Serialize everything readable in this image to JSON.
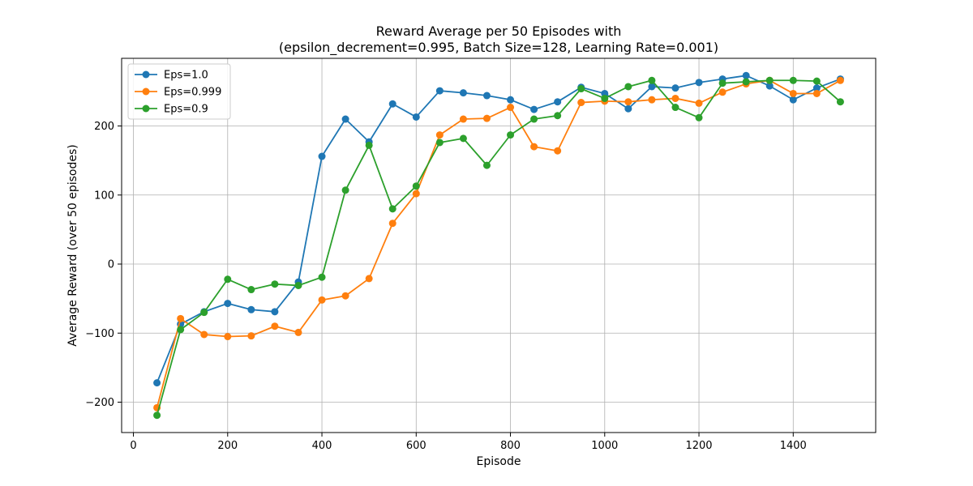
{
  "chart_data": {
    "type": "line",
    "title": [
      "Reward Average per 50 Episodes with",
      "(epsilon_decrement=0.995, Batch Size=128, Learning Rate=0.001)"
    ],
    "xlabel": "Episode",
    "ylabel": "Average Reward (over 50 episodes)",
    "xlim": [
      -25,
      1575
    ],
    "ylim": [
      -244,
      298
    ],
    "xticks": [
      0,
      200,
      400,
      600,
      800,
      1000,
      1200,
      1400
    ],
    "yticks": [
      -200,
      -100,
      0,
      100,
      200
    ],
    "xtick_labels": [
      "0",
      "200",
      "400",
      "600",
      "800",
      "1000",
      "1200",
      "1400"
    ],
    "ytick_labels": [
      "−200",
      "−100",
      "0",
      "100",
      "200"
    ],
    "grid": true,
    "legend_position": "top-left",
    "x": [
      50,
      100,
      150,
      200,
      250,
      300,
      350,
      400,
      450,
      500,
      550,
      600,
      650,
      700,
      750,
      800,
      850,
      900,
      950,
      1000,
      1050,
      1100,
      1150,
      1200,
      1250,
      1300,
      1350,
      1400,
      1450,
      1500
    ],
    "series": [
      {
        "name": "Eps=1.0",
        "color": "#1f77b4",
        "values": [
          -172,
          -87,
          -69,
          -57,
          -66,
          -69,
          -26,
          156,
          210,
          177,
          232,
          213,
          251,
          248,
          244,
          238,
          224,
          235,
          256,
          247,
          225,
          257,
          255,
          263,
          268,
          273,
          258,
          238,
          255,
          268
        ]
      },
      {
        "name": "Eps=0.999",
        "color": "#ff7f0e",
        "values": [
          -208,
          -79,
          -102,
          -105,
          -104,
          -90,
          -99,
          -52,
          -46,
          -21,
          59,
          102,
          187,
          210,
          211,
          227,
          170,
          164,
          234,
          236,
          235,
          238,
          240,
          233,
          249,
          261,
          266,
          247,
          247,
          266
        ]
      },
      {
        "name": "Eps=0.9",
        "color": "#2ca02c",
        "values": [
          -219,
          -95,
          -70,
          -22,
          -37,
          -29,
          -31,
          -19,
          107,
          172,
          80,
          113,
          176,
          182,
          143,
          187,
          210,
          215,
          254,
          240,
          257,
          266,
          227,
          212,
          262,
          264,
          266,
          266,
          265,
          235
        ]
      }
    ]
  }
}
